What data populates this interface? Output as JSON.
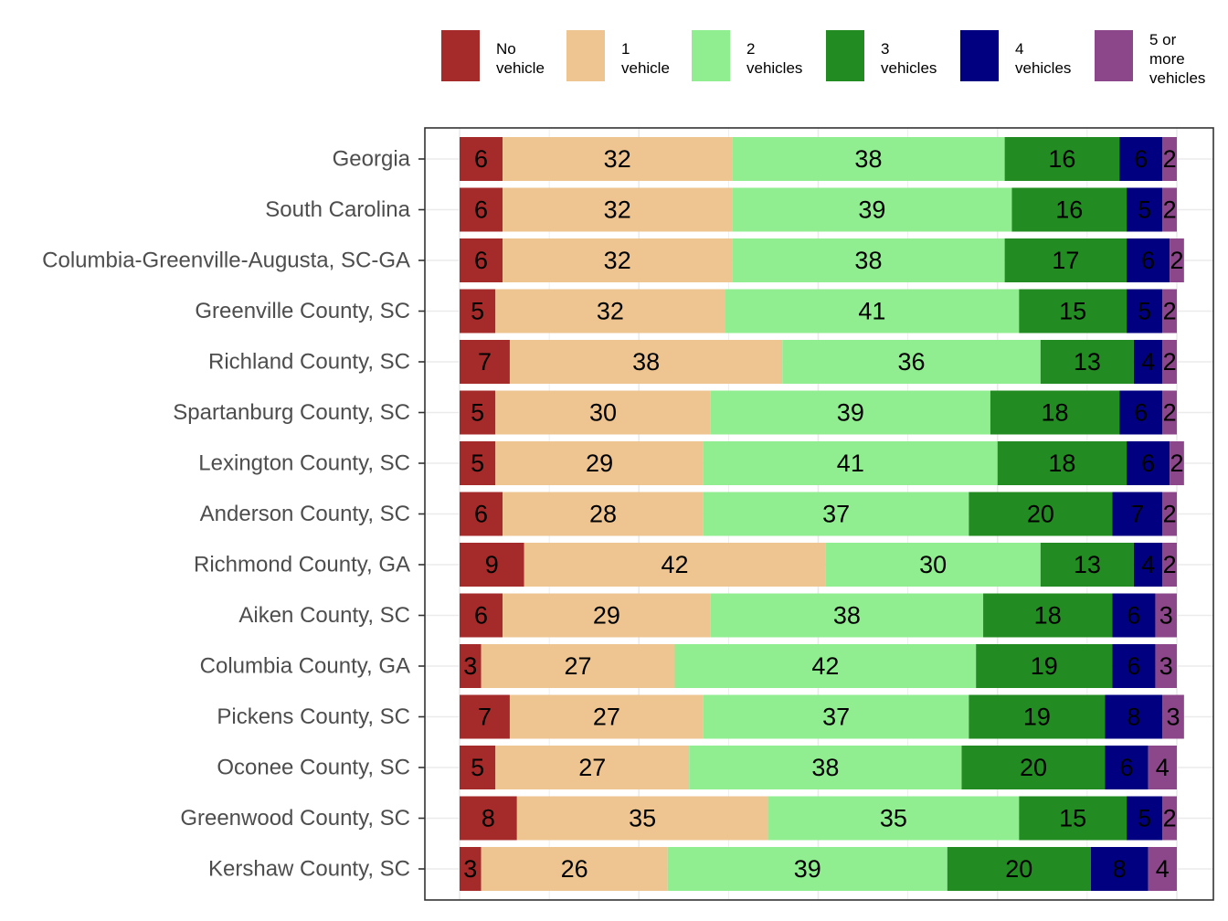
{
  "chart_data": {
    "type": "bar",
    "orientation": "horizontal",
    "stacked": true,
    "title": "",
    "xlabel": "",
    "ylabel": "",
    "xlim": [
      0,
      100
    ],
    "legend_position": "top",
    "grid": true,
    "categories": [
      "Georgia",
      "South Carolina",
      "Columbia-Greenville-Augusta, SC-GA",
      "Greenville County, SC",
      "Richland County, SC",
      "Spartanburg County, SC",
      "Lexington County, SC",
      "Anderson County, SC",
      "Richmond County, GA",
      "Aiken County, SC",
      "Columbia County, GA",
      "Pickens County, SC",
      "Oconee County, SC",
      "Greenwood County, SC",
      "Kershaw County, SC"
    ],
    "series": [
      {
        "name": "No\nvehicle",
        "color": "#A52A2A",
        "values": [
          6,
          6,
          6,
          5,
          7,
          5,
          5,
          6,
          9,
          6,
          3,
          7,
          5,
          8,
          3
        ]
      },
      {
        "name": "1\nvehicle",
        "color": "#EEC591",
        "values": [
          32,
          32,
          32,
          32,
          38,
          30,
          29,
          28,
          42,
          29,
          27,
          27,
          27,
          35,
          26
        ]
      },
      {
        "name": "2\nvehicles",
        "color": "#90EE90",
        "values": [
          38,
          39,
          38,
          41,
          36,
          39,
          41,
          37,
          30,
          38,
          42,
          37,
          38,
          35,
          39
        ]
      },
      {
        "name": "3\nvehicles",
        "color": "#228B22",
        "values": [
          16,
          16,
          17,
          15,
          13,
          18,
          18,
          20,
          13,
          18,
          19,
          19,
          20,
          15,
          20
        ]
      },
      {
        "name": "4\nvehicles",
        "color": "#000080",
        "values": [
          6,
          5,
          6,
          5,
          4,
          6,
          6,
          7,
          4,
          6,
          6,
          8,
          6,
          5,
          8
        ]
      },
      {
        "name": "5 or\nmore\nvehicles",
        "color": "#8B4789",
        "values": [
          2,
          2,
          2,
          2,
          2,
          2,
          2,
          2,
          2,
          3,
          3,
          3,
          4,
          2,
          4
        ]
      }
    ]
  }
}
